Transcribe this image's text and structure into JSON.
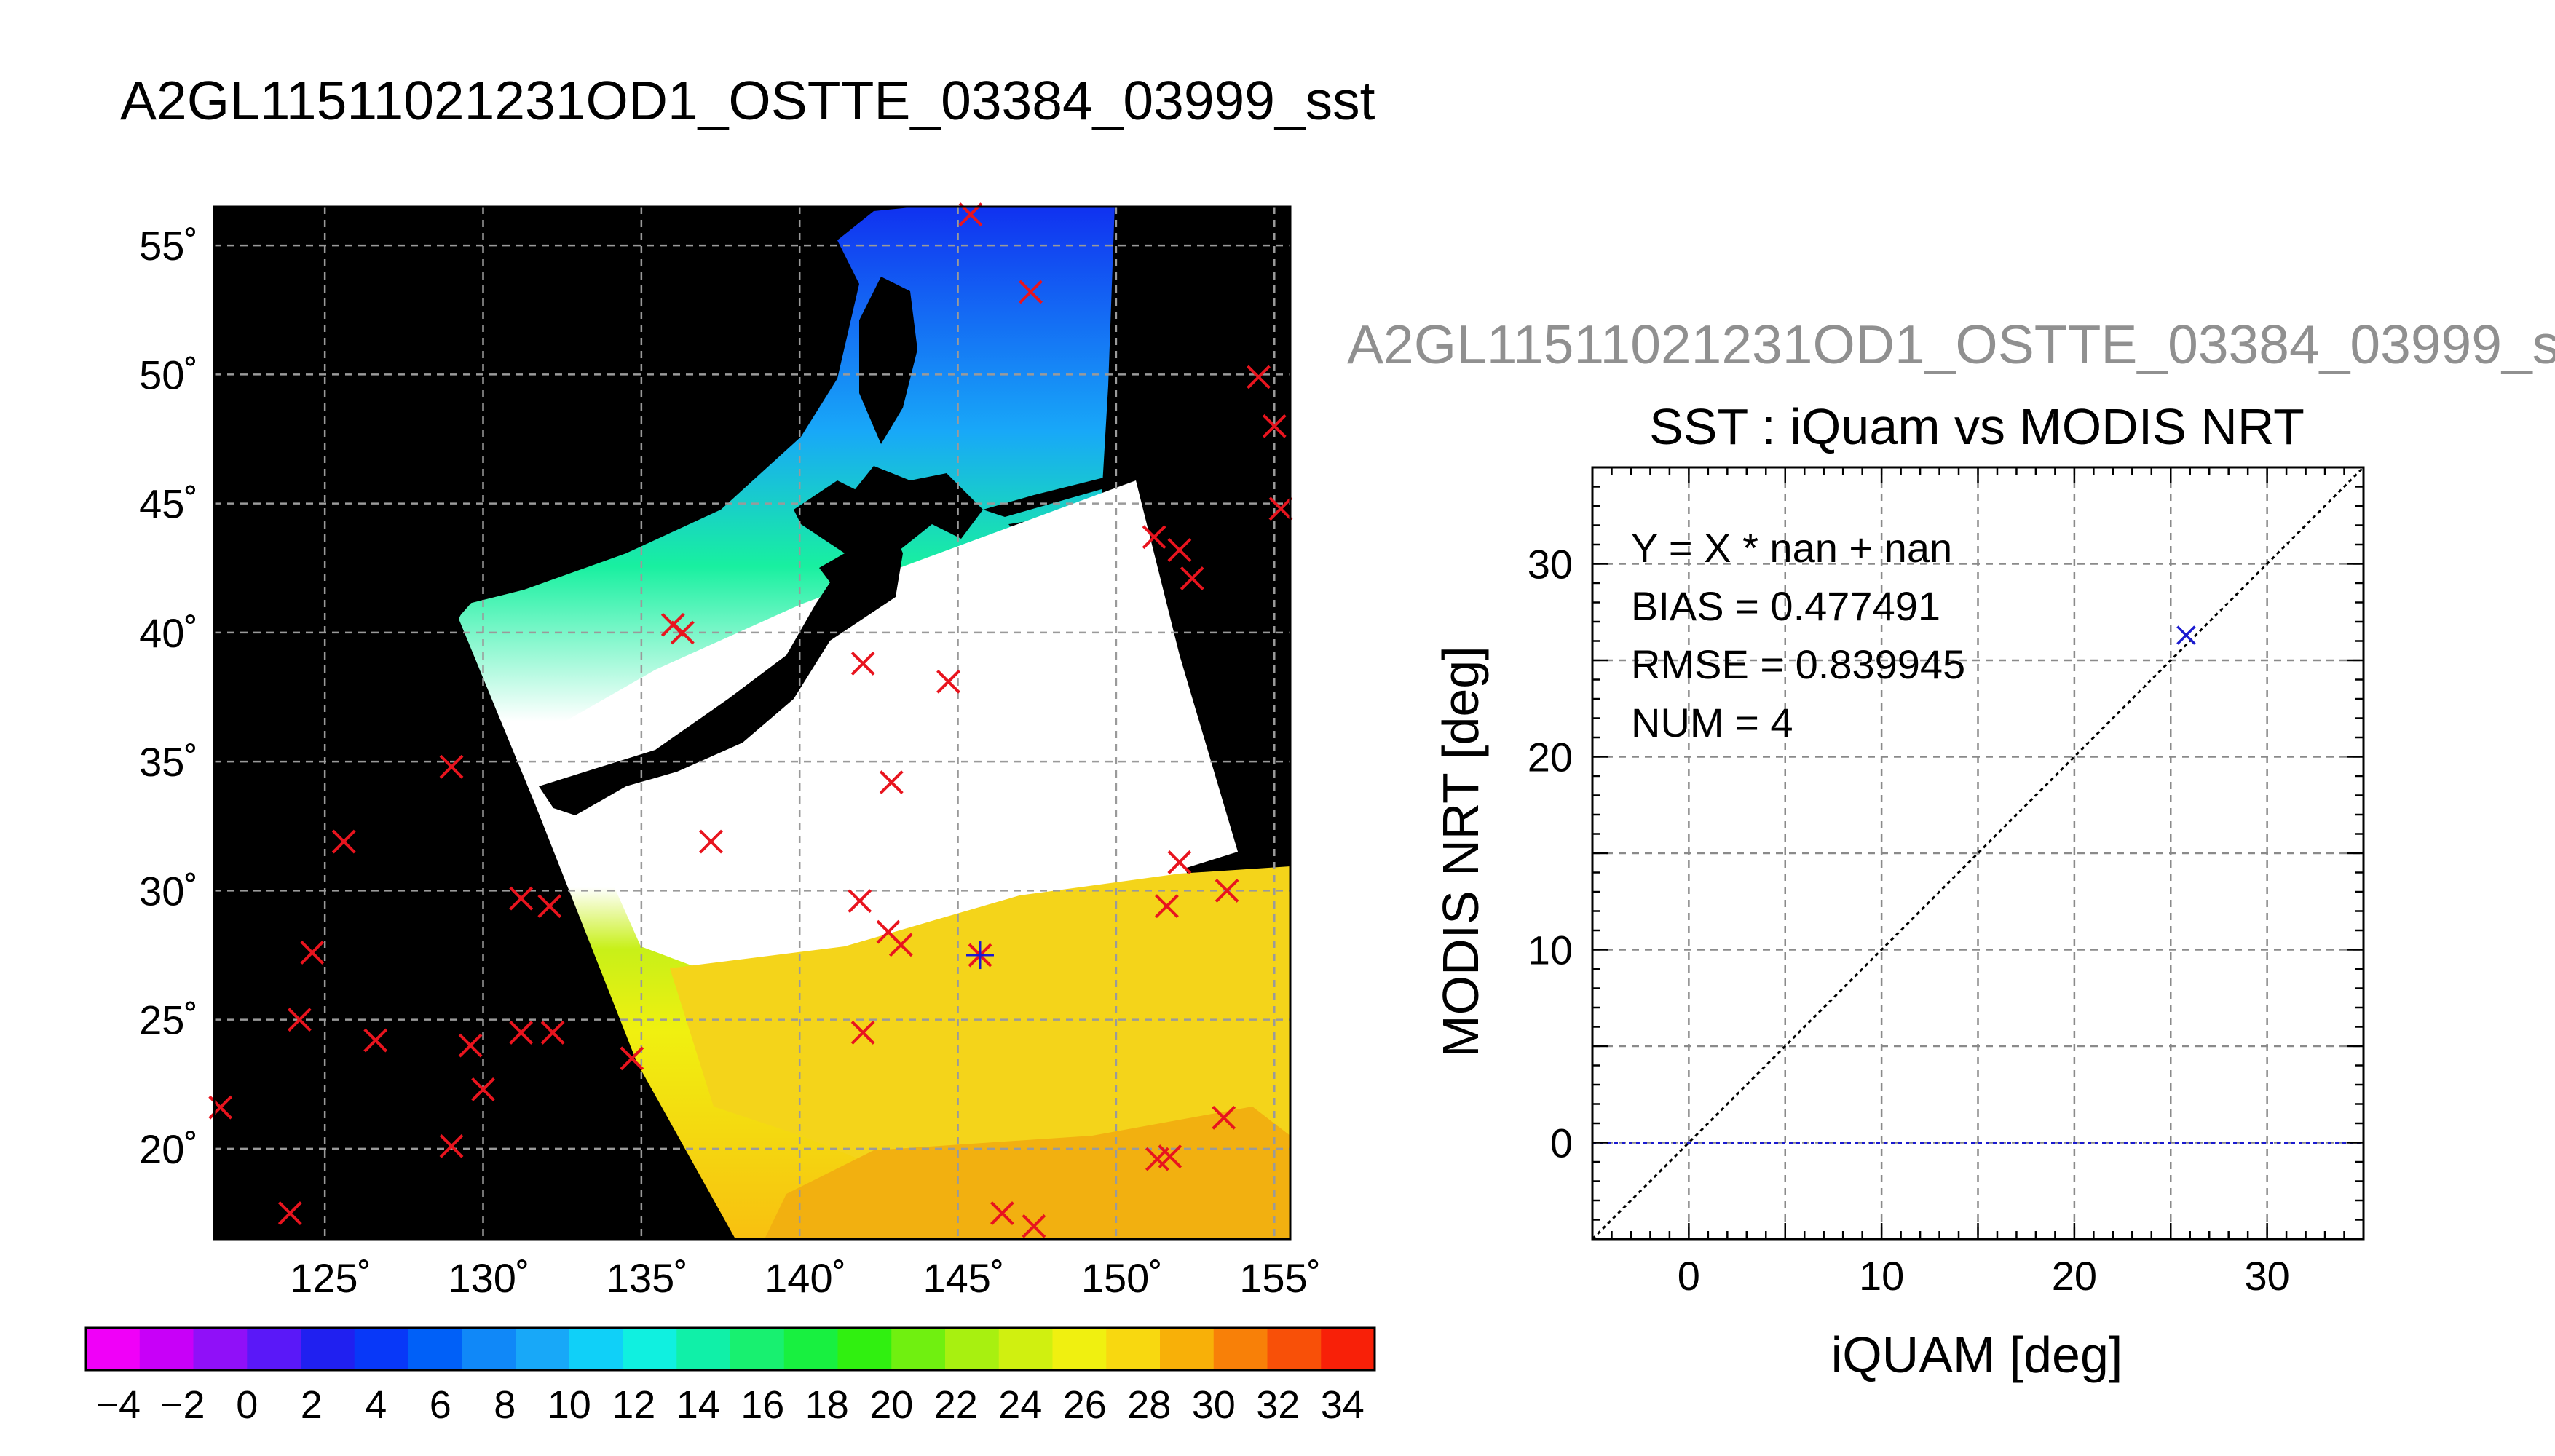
{
  "title": "A2GL11511021231OD1_OSTTE_03384_03999_sst",
  "faded_title": "A2GL11511021231OD1_OSTTE_03384_03999_s",
  "map": {
    "lon_ticks": [
      125,
      130,
      135,
      140,
      145,
      150,
      155
    ],
    "lat_ticks": [
      20,
      25,
      30,
      35,
      40,
      45,
      50,
      55
    ],
    "lon_range": [
      121.5,
      155.5
    ],
    "lat_range": [
      16.5,
      56.5
    ],
    "land_color": "#000000",
    "nodata_color": "#ffffff",
    "marker_color": "#e8141e",
    "matched_marker_color": "#1a1ad0",
    "markers": [
      {
        "lon": 145.4,
        "lat": 56.2
      },
      {
        "lon": 147.3,
        "lat": 53.2
      },
      {
        "lon": 154.5,
        "lat": 49.9
      },
      {
        "lon": 155.0,
        "lat": 48.0
      },
      {
        "lon": 155.2,
        "lat": 44.8
      },
      {
        "lon": 151.2,
        "lat": 43.7
      },
      {
        "lon": 152.0,
        "lat": 43.2
      },
      {
        "lon": 152.4,
        "lat": 42.1
      },
      {
        "lon": 136.0,
        "lat": 40.3
      },
      {
        "lon": 136.3,
        "lat": 40.0
      },
      {
        "lon": 142.0,
        "lat": 38.8
      },
      {
        "lon": 144.7,
        "lat": 38.1
      },
      {
        "lon": 129.0,
        "lat": 34.8
      },
      {
        "lon": 142.9,
        "lat": 34.2
      },
      {
        "lon": 125.6,
        "lat": 31.9
      },
      {
        "lon": 137.2,
        "lat": 31.9
      },
      {
        "lon": 152.0,
        "lat": 31.1
      },
      {
        "lon": 153.5,
        "lat": 30.0
      },
      {
        "lon": 131.2,
        "lat": 29.7
      },
      {
        "lon": 132.1,
        "lat": 29.4
      },
      {
        "lon": 141.9,
        "lat": 29.6
      },
      {
        "lon": 151.6,
        "lat": 29.4
      },
      {
        "lon": 142.8,
        "lat": 28.4
      },
      {
        "lon": 143.2,
        "lat": 27.9
      },
      {
        "lon": 124.6,
        "lat": 27.6
      },
      {
        "lon": 124.2,
        "lat": 25.0
      },
      {
        "lon": 142.0,
        "lat": 24.5
      },
      {
        "lon": 131.2,
        "lat": 24.5
      },
      {
        "lon": 132.2,
        "lat": 24.5
      },
      {
        "lon": 126.6,
        "lat": 24.2
      },
      {
        "lon": 129.6,
        "lat": 24.0
      },
      {
        "lon": 134.7,
        "lat": 23.5
      },
      {
        "lon": 130.0,
        "lat": 22.3
      },
      {
        "lon": 121.7,
        "lat": 21.6
      },
      {
        "lon": 153.4,
        "lat": 21.2
      },
      {
        "lon": 129.0,
        "lat": 20.1
      },
      {
        "lon": 151.3,
        "lat": 19.6
      },
      {
        "lon": 151.7,
        "lat": 19.7
      },
      {
        "lon": 123.9,
        "lat": 17.5
      },
      {
        "lon": 146.4,
        "lat": 17.5
      },
      {
        "lon": 147.4,
        "lat": 17.0
      }
    ],
    "matched_marker": {
      "lon": 145.7,
      "lat": 27.5
    }
  },
  "colorbar": {
    "tick_labels": [
      "−4",
      "−2",
      "0",
      "2",
      "4",
      "6",
      "8",
      "10",
      "12",
      "14",
      "16",
      "18",
      "20",
      "22",
      "24",
      "26",
      "28",
      "30",
      "32",
      "34"
    ],
    "range": [
      -5,
      35
    ],
    "colors": [
      "#f000f8",
      "#c800f8",
      "#9010f8",
      "#5a18f8",
      "#2020f0",
      "#0838f8",
      "#0060f8",
      "#1088f8",
      "#18a8f8",
      "#10d0f8",
      "#10f0e0",
      "#10f0a8",
      "#18f070",
      "#18f040",
      "#30f010",
      "#70f010",
      "#a8f010",
      "#d0f010",
      "#f0f010",
      "#f8d810",
      "#f8b008",
      "#f88008",
      "#f85008",
      "#f82008"
    ]
  },
  "chart_data": {
    "type": "scatter",
    "title": "SST : iQuam vs MODIS NRT",
    "xlabel": "iQUAM [deg]",
    "ylabel": "MODIS NRT [deg]",
    "xlim": [
      -5,
      35
    ],
    "ylim": [
      -5,
      35
    ],
    "xticks": [
      0,
      10,
      20,
      30
    ],
    "yticks": [
      0,
      10,
      20,
      30
    ],
    "grid": true,
    "annotations": [
      "Y = X * nan + nan",
      "BIAS = 0.477491",
      "RMSE = 0.839945",
      "NUM = 4"
    ],
    "points": [
      {
        "x": 25.8,
        "y": 26.3
      }
    ],
    "reference_lines": [
      {
        "kind": "one-to-one",
        "color": "#000000"
      },
      {
        "kind": "horizontal",
        "y": 0,
        "color": "#1a1ad0"
      }
    ],
    "marker_color": "#1a1ad0"
  }
}
